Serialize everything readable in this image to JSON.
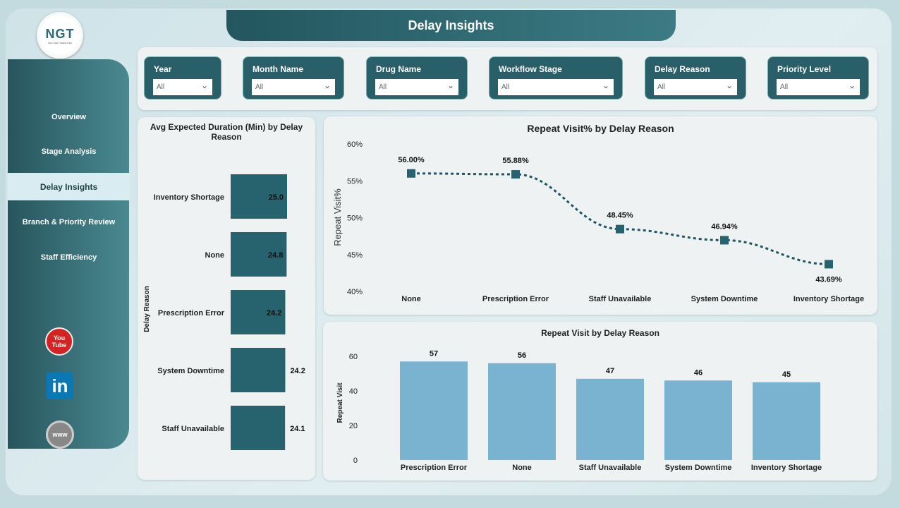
{
  "page": {
    "title": "Delay Insights"
  },
  "logo": {
    "text": "NGT",
    "subtitle": "NEXT GEN TEMPLATES"
  },
  "sidebar": {
    "items": [
      {
        "label": "Overview"
      },
      {
        "label": "Stage Analysis"
      },
      {
        "label": "Delay Insights",
        "selected": true
      },
      {
        "label": "Branch & Priority Review"
      },
      {
        "label": "Staff Efficiency"
      }
    ],
    "social": [
      {
        "icon": "youtube-icon",
        "text": "You Tube"
      },
      {
        "icon": "linkedin-icon",
        "text": "in"
      },
      {
        "icon": "globe-icon",
        "text": "www"
      }
    ]
  },
  "filters": [
    {
      "label": "Year",
      "value": "All"
    },
    {
      "label": "Month Name",
      "value": "All"
    },
    {
      "label": "Drug Name",
      "value": "All"
    },
    {
      "label": "Workflow Stage",
      "value": "All"
    },
    {
      "label": "Delay Reason",
      "value": "All"
    },
    {
      "label": "Priority Level",
      "value": "All"
    }
  ],
  "colors": {
    "teal": "#27636e",
    "bar_light": "#79b3d0",
    "line": "#1f5562"
  },
  "chart_data": [
    {
      "type": "bar",
      "orientation": "horizontal",
      "title": "Avg Expected Duration (Min) by Delay Reason",
      "ylabel": "Delay Reason",
      "categories": [
        "Inventory Shortage",
        "None",
        "Prescription Error",
        "System Downtime",
        "Staff Unavailable"
      ],
      "values": [
        25.0,
        24.8,
        24.2,
        24.2,
        24.1
      ],
      "labels": [
        "25.0",
        "24.8",
        "24.2",
        "24.2",
        "24.1"
      ]
    },
    {
      "type": "line",
      "title": "Repeat Visit% by Delay Reason",
      "ylabel": "Repeat Visit%",
      "categories": [
        "None",
        "Prescription Error",
        "Staff Unavailable",
        "System Downtime",
        "Inventory Shortage"
      ],
      "values": [
        56.0,
        55.88,
        48.45,
        46.94,
        43.69
      ],
      "labels": [
        "56.00%",
        "55.88%",
        "48.45%",
        "46.94%",
        "43.69%"
      ],
      "ylim": [
        40,
        60
      ],
      "yticks": [
        "40%",
        "45%",
        "50%",
        "55%",
        "60%"
      ],
      "yticks_values": [
        40,
        45,
        50,
        55,
        60
      ]
    },
    {
      "type": "bar",
      "title": "Repeat Visit by Delay Reason",
      "ylabel": "Repeat Visit",
      "categories": [
        "Prescription Error",
        "None",
        "Staff Unavailable",
        "System Downtime",
        "Inventory Shortage"
      ],
      "values": [
        57,
        56,
        47,
        46,
        45
      ],
      "ylim": [
        0,
        60
      ],
      "yticks": [
        "0",
        "20",
        "40",
        "60"
      ],
      "yticks_values": [
        0,
        20,
        40,
        60
      ]
    }
  ]
}
